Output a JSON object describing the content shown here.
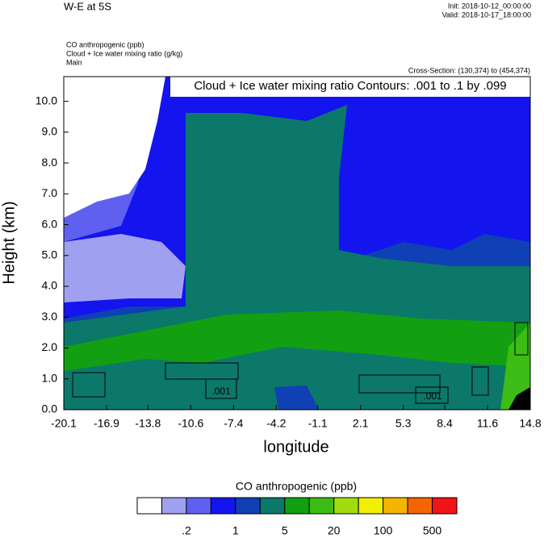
{
  "chart_data": {
    "type": "contour",
    "title": "W-E at 5S",
    "init": "Init: 2018-10-12_00:00:00",
    "valid": "Valid: 2018-10-17_18:00:00",
    "fields": [
      "CO anthropogenic   (ppb)",
      "Cloud + Ice water mixing ratio   (g/kg)",
      "Main"
    ],
    "cross_section": "Cross-Section: (130,374) to (454,374)",
    "contour_label": "Cloud + Ice water mixing ratio Contours: .001 to .1 by .099",
    "line_labels": [
      ".001",
      ".001"
    ],
    "x_label": "longitude",
    "y_label": "Height (km)",
    "xlim": [
      -20.1,
      14.8
    ],
    "xticks": [
      -20.1,
      -16.9,
      -13.8,
      -10.6,
      -7.4,
      -4.2,
      -1.1,
      2.1,
      5.3,
      8.4,
      11.6,
      14.8
    ],
    "ylim": [
      0,
      10.8
    ],
    "yticks": [
      {
        "value": 0,
        "label": "0.0"
      },
      {
        "value": 1,
        "label": "1.0"
      },
      {
        "value": 2,
        "label": "2.0"
      },
      {
        "value": 3,
        "label": "3.0"
      },
      {
        "value": 4,
        "label": "4.0"
      },
      {
        "value": 5,
        "label": "5.0"
      },
      {
        "value": 6,
        "label": "6.0"
      },
      {
        "value": 7,
        "label": "7.0"
      },
      {
        "value": 8,
        "label": "8.0"
      },
      {
        "value": 9,
        "label": "9.0"
      },
      {
        "value": 10,
        "label": "10.0"
      }
    ],
    "colorbar": {
      "title": "CO anthropogenic  (ppb)",
      "colors": [
        "#ffffff",
        "#a0a0f0",
        "#6060f0",
        "#1414ee",
        "#0f40b4",
        "#0b786a",
        "#12a012",
        "#3cbc14",
        "#a0dc10",
        "#f0f000",
        "#f4b400",
        "#f46400",
        "#f01414"
      ],
      "labels": [
        {
          "value": 0.2,
          "label": ".2"
        },
        1,
        5,
        20,
        100,
        500
      ]
    }
  }
}
